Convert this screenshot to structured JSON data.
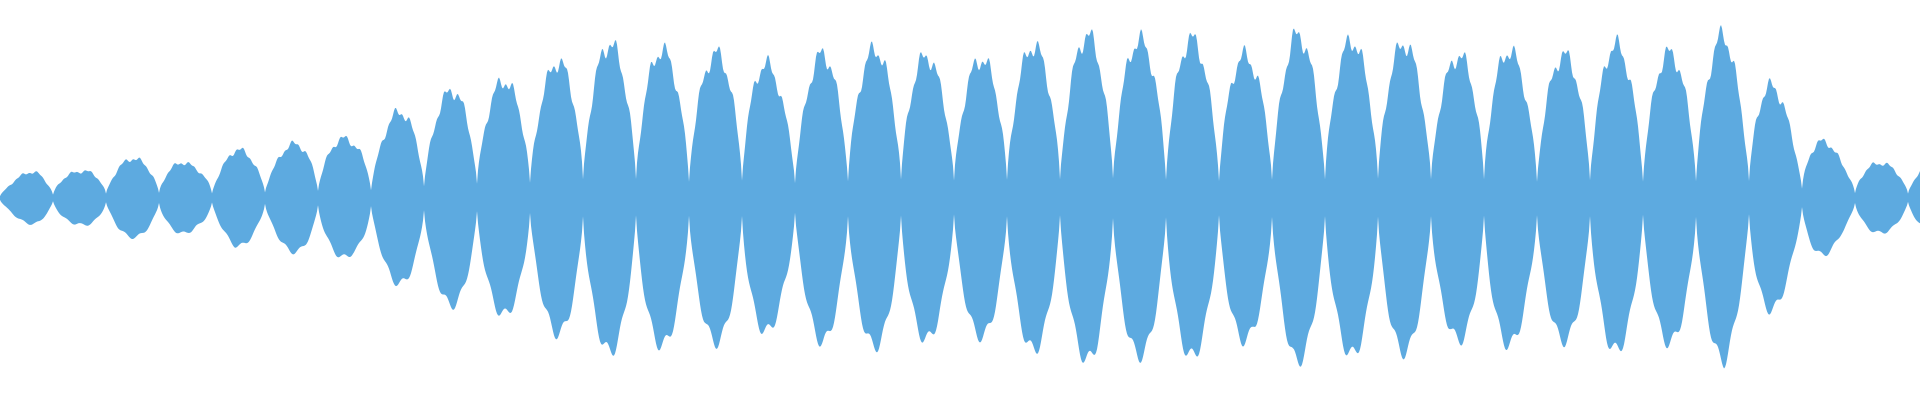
{
  "waveform": {
    "color": "#5DAAE0",
    "background": "#FFFFFF",
    "envelope": [
      0.09,
      0.17,
      0.15,
      0.22,
      0.24,
      0.19,
      0.28,
      0.27,
      0.36,
      0.34,
      0.48,
      0.58,
      0.66,
      0.68,
      0.76,
      0.88,
      0.9,
      0.85,
      0.82,
      0.88,
      0.7,
      0.84,
      0.85,
      0.88,
      0.79,
      0.8,
      0.88,
      0.88,
      0.96,
      0.91,
      0.95,
      0.88,
      0.81,
      0.95,
      0.9,
      0.92,
      0.89,
      0.8,
      0.91,
      0.8,
      0.83,
      0.9,
      0.84,
      0.84,
      0.95,
      0.72,
      0.44,
      0.25,
      0.2,
      0.2
    ]
  }
}
